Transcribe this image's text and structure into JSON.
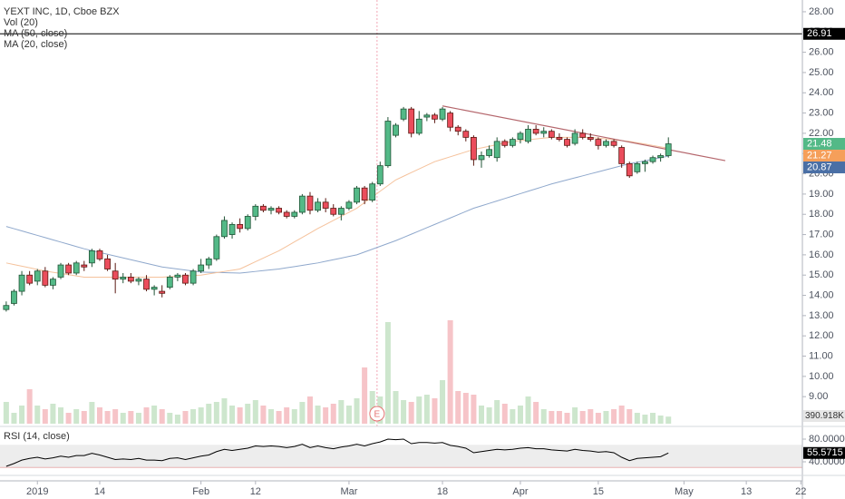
{
  "chart_data": {
    "type": "candlestick",
    "title": "YEXT INC, 1D, Cboe BZX",
    "xlim": [
      -0.8,
      102.2
    ],
    "xticks": [
      {
        "value": 4,
        "label": "2019"
      },
      {
        "value": 12,
        "label": "14"
      },
      {
        "value": 25,
        "label": "Feb"
      },
      {
        "value": 32,
        "label": "12"
      },
      {
        "value": 44,
        "label": "Mar"
      },
      {
        "value": 56,
        "label": "18"
      },
      {
        "value": 66,
        "label": "Apr"
      },
      {
        "value": 76,
        "label": "15"
      },
      {
        "value": 87,
        "label": "May"
      },
      {
        "value": 95,
        "label": "13"
      },
      {
        "value": 102,
        "label": "22"
      }
    ],
    "ylim": [
      7.53,
      28.58
    ],
    "yticks": [
      {
        "value": 28,
        "label": "28.00"
      },
      {
        "value": 27,
        "label": "27.00"
      },
      {
        "value": 26,
        "label": "26.00"
      },
      {
        "value": 25,
        "label": "25.00"
      },
      {
        "value": 24,
        "label": "24.00"
      },
      {
        "value": 23,
        "label": "23.00"
      },
      {
        "value": 22,
        "label": "22.00"
      },
      {
        "value": 21,
        "label": "21.00"
      },
      {
        "value": 20,
        "label": "20.00"
      },
      {
        "value": 19,
        "label": "19.00"
      },
      {
        "value": 18,
        "label": "18.00"
      },
      {
        "value": 17,
        "label": "17.00"
      },
      {
        "value": 16,
        "label": "16.00"
      },
      {
        "value": 15,
        "label": "15.00"
      },
      {
        "value": 14,
        "label": "14.00"
      },
      {
        "value": 13,
        "label": "13.00"
      },
      {
        "value": 12,
        "label": "12.00"
      },
      {
        "value": 11,
        "label": "11.00"
      },
      {
        "value": 10,
        "label": "10.00"
      },
      {
        "value": 9,
        "label": "9.00"
      }
    ],
    "up_color": "#53b987",
    "down_color": "#eb4d5c",
    "candles": {
      "open": [
        13.3,
        13.6,
        14.2,
        15.0,
        14.7,
        15.2,
        14.5,
        14.9,
        15.5,
        15.1,
        15.5,
        15.6,
        16.2,
        15.8,
        15.2,
        14.8,
        14.9,
        14.7,
        14.8,
        14.3,
        14.2,
        14.4,
        14.9,
        15.0,
        14.6,
        15.2,
        15.5,
        15.8,
        16.9,
        17.0,
        17.5,
        17.3,
        17.9,
        18.4,
        18.2,
        18.3,
        18.1,
        17.9,
        18.1,
        18.9,
        18.2,
        18.6,
        18.3,
        18.0,
        18.3,
        18.6,
        19.3,
        18.7,
        19.5,
        20.4,
        21.9,
        22.7,
        23.2,
        22.0,
        22.8,
        22.9,
        22.7,
        23.0,
        22.3,
        22.1,
        21.8,
        20.7,
        20.9,
        20.8,
        21.6,
        21.4,
        21.7,
        21.6,
        22.2,
        22.0,
        22.1,
        21.8,
        21.7,
        21.5,
        22.0,
        21.8,
        21.7,
        21.4,
        21.6,
        21.3,
        20.5,
        20.1,
        20.5,
        20.6,
        20.8,
        20.9
      ],
      "high": [
        13.7,
        14.3,
        15.2,
        15.2,
        15.3,
        15.4,
        14.9,
        15.6,
        15.6,
        15.7,
        15.7,
        16.3,
        16.3,
        16.0,
        15.6,
        15.1,
        15.1,
        14.9,
        15.0,
        14.5,
        14.5,
        15.0,
        15.1,
        15.1,
        15.3,
        15.8,
        15.9,
        17.0,
        17.9,
        17.6,
        17.8,
        18.0,
        18.5,
        18.5,
        18.4,
        18.4,
        18.2,
        18.2,
        19.0,
        19.1,
        18.8,
        18.8,
        18.5,
        18.4,
        18.7,
        19.4,
        19.4,
        19.6,
        20.6,
        22.8,
        22.5,
        23.3,
        23.3,
        23.1,
        23.0,
        23.0,
        23.3,
        23.1,
        22.4,
        22.2,
        21.9,
        21.1,
        21.4,
        21.8,
        21.7,
        21.8,
        22.1,
        22.4,
        22.4,
        22.3,
        22.2,
        22.0,
        21.8,
        22.2,
        22.2,
        22.0,
        21.8,
        21.7,
        21.7,
        21.4,
        20.6,
        20.6,
        20.7,
        20.9,
        21.0,
        21.8
      ],
      "low": [
        13.2,
        13.5,
        14.0,
        14.5,
        14.5,
        14.4,
        14.3,
        14.8,
        15.0,
        15.0,
        15.2,
        15.4,
        15.7,
        15.2,
        14.1,
        14.6,
        14.6,
        14.5,
        14.2,
        14.0,
        13.9,
        14.3,
        14.7,
        14.5,
        14.5,
        15.1,
        15.3,
        15.7,
        16.8,
        16.8,
        17.1,
        17.2,
        17.7,
        18.1,
        18.0,
        18.0,
        17.8,
        17.8,
        18.0,
        18.0,
        18.1,
        18.1,
        17.9,
        17.7,
        18.2,
        18.5,
        18.5,
        18.6,
        19.4,
        20.3,
        21.8,
        22.6,
        21.8,
        21.9,
        22.6,
        22.5,
        22.6,
        22.1,
        21.9,
        21.6,
        20.4,
        20.3,
        20.8,
        20.6,
        21.3,
        21.3,
        21.5,
        21.5,
        21.9,
        21.8,
        21.7,
        21.6,
        21.3,
        21.4,
        21.7,
        21.6,
        21.2,
        21.3,
        21.3,
        20.3,
        19.8,
        20.0,
        20.1,
        20.5,
        20.6,
        20.8
      ],
      "close": [
        13.5,
        14.2,
        15.0,
        14.6,
        15.2,
        14.5,
        14.8,
        15.5,
        15.1,
        15.6,
        15.4,
        16.2,
        15.8,
        15.3,
        14.8,
        14.9,
        14.7,
        14.8,
        14.3,
        14.4,
        14.1,
        14.9,
        15.0,
        14.6,
        15.2,
        15.5,
        15.8,
        16.9,
        17.7,
        17.5,
        17.3,
        17.9,
        18.4,
        18.2,
        18.3,
        18.1,
        17.9,
        18.1,
        18.9,
        18.2,
        18.6,
        18.3,
        18.0,
        18.3,
        18.6,
        19.3,
        18.7,
        19.5,
        20.4,
        22.6,
        22.4,
        23.2,
        22.0,
        22.7,
        22.9,
        22.7,
        23.2,
        22.3,
        22.1,
        21.8,
        20.7,
        20.9,
        21.2,
        21.6,
        21.4,
        21.7,
        22.0,
        22.2,
        22.0,
        22.1,
        21.8,
        21.7,
        21.4,
        22.0,
        21.8,
        21.7,
        21.4,
        21.6,
        21.4,
        20.5,
        19.9,
        20.5,
        20.6,
        20.8,
        20.9,
        21.48
      ]
    },
    "horizontal_line": {
      "value": 26.91,
      "color": "#000000"
    },
    "trendline": {
      "x": [
        56,
        92.3
      ],
      "y": [
        23.35,
        20.65
      ],
      "color": "#b5676d"
    },
    "earnings": {
      "x": 47.6,
      "label": "E"
    },
    "series": [
      {
        "name": "MA (50, close)",
        "color": "#8fa8cc",
        "marker_color": "#4a6fa5",
        "values": [
          17.4,
          17.29,
          17.18,
          17.07,
          16.96,
          16.85,
          16.74,
          16.63,
          16.52,
          16.41,
          16.3,
          16.21,
          16.12,
          16.03,
          15.94,
          15.85,
          15.76,
          15.67,
          15.58,
          15.49,
          15.4,
          15.35,
          15.3,
          15.25,
          15.2,
          15.15,
          15.14,
          15.13,
          15.12,
          15.11,
          15.1,
          15.14,
          15.18,
          15.22,
          15.26,
          15.3,
          15.36,
          15.42,
          15.48,
          15.54,
          15.6,
          15.68,
          15.76,
          15.84,
          15.92,
          16.0,
          16.14,
          16.28,
          16.42,
          16.56,
          16.7,
          16.86,
          17.02,
          17.18,
          17.34,
          17.5,
          17.66,
          17.82,
          17.98,
          18.14,
          18.3,
          18.42,
          18.54,
          18.66,
          18.78,
          18.9,
          19.02,
          19.14,
          19.26,
          19.38,
          19.5,
          19.6,
          19.7,
          19.8,
          19.9,
          20.0,
          20.1,
          20.2,
          20.3,
          20.4,
          20.5,
          20.57,
          20.64,
          20.72,
          20.8,
          20.87
        ]
      },
      {
        "name": "MA (20, close)",
        "color": "#f5c29c",
        "marker_color": "#f59f5a",
        "values": [
          15.6,
          15.52,
          15.44,
          15.36,
          15.28,
          15.2,
          15.14,
          15.08,
          15.02,
          14.96,
          14.9,
          14.9,
          14.9,
          14.9,
          14.9,
          14.9,
          14.9,
          14.9,
          14.9,
          14.9,
          14.9,
          14.92,
          14.94,
          14.96,
          14.98,
          15.0,
          15.06,
          15.12,
          15.18,
          15.24,
          15.3,
          15.48,
          15.66,
          15.84,
          16.02,
          16.2,
          16.42,
          16.64,
          16.86,
          17.08,
          17.3,
          17.5,
          17.7,
          17.9,
          18.1,
          18.3,
          18.58,
          18.86,
          19.14,
          19.42,
          19.7,
          19.88,
          20.06,
          20.24,
          20.42,
          20.6,
          20.72,
          20.84,
          20.96,
          21.08,
          21.2,
          21.28,
          21.36,
          21.44,
          21.52,
          21.6,
          21.64,
          21.68,
          21.72,
          21.76,
          21.8,
          21.8,
          21.8,
          21.8,
          21.8,
          21.8,
          21.76,
          21.72,
          21.68,
          21.64,
          21.6,
          21.53,
          21.47,
          21.4,
          21.33,
          21.27
        ]
      }
    ],
    "volume": {
      "name": "Vol (20)",
      "ylim": [
        0,
        6000
      ],
      "up_color": "#cde6cd",
      "down_color": "#f6c4c8",
      "last_label": "390.918K",
      "values": [
        1200,
        600,
        1000,
        1900,
        1000,
        800,
        1100,
        900,
        600,
        800,
        700,
        1200,
        900,
        700,
        800,
        600,
        700,
        600,
        900,
        1000,
        800,
        600,
        500,
        700,
        800,
        900,
        1100,
        1200,
        1400,
        1000,
        900,
        1100,
        1300,
        1000,
        800,
        700,
        900,
        800,
        1200,
        1500,
        1000,
        900,
        1100,
        1300,
        1000,
        1400,
        3100,
        1800,
        1500,
        5600,
        1800,
        1300,
        1200,
        1500,
        1600,
        1400,
        2400,
        5700,
        1800,
        1700,
        1600,
        1000,
        900,
        1300,
        1100,
        800,
        1000,
        1500,
        1200,
        800,
        700,
        700,
        600,
        900,
        700,
        800,
        600,
        700,
        800,
        1000,
        800,
        600,
        500,
        600,
        450,
        390.918
      ]
    },
    "rsi": {
      "name": "RSI (14, close)",
      "color": "#000000",
      "ylim": [
        16,
        96
      ],
      "band": [
        30,
        70
      ],
      "yticks": [
        {
          "value": 80,
          "label": "80.0000"
        },
        {
          "value": 40,
          "label": "40.0000"
        }
      ],
      "values": [
        32,
        37,
        43,
        46,
        48,
        45,
        47,
        50,
        48,
        51,
        51,
        55,
        52,
        48,
        44,
        45,
        44,
        46,
        43,
        43,
        42,
        46,
        47,
        44,
        47,
        50,
        52,
        58,
        62,
        60,
        62,
        64,
        68,
        67,
        68,
        67,
        65,
        67,
        71,
        65,
        68,
        65,
        63,
        66,
        68,
        71,
        68,
        72,
        75,
        80,
        79,
        80,
        72,
        74,
        74,
        73,
        74,
        69,
        67,
        64,
        56,
        58,
        60,
        62,
        61,
        62,
        64,
        65,
        63,
        63,
        61,
        60,
        59,
        62,
        60,
        59,
        57,
        58,
        56,
        48,
        42,
        46,
        47,
        48,
        49,
        55.5715
      ]
    }
  }
}
